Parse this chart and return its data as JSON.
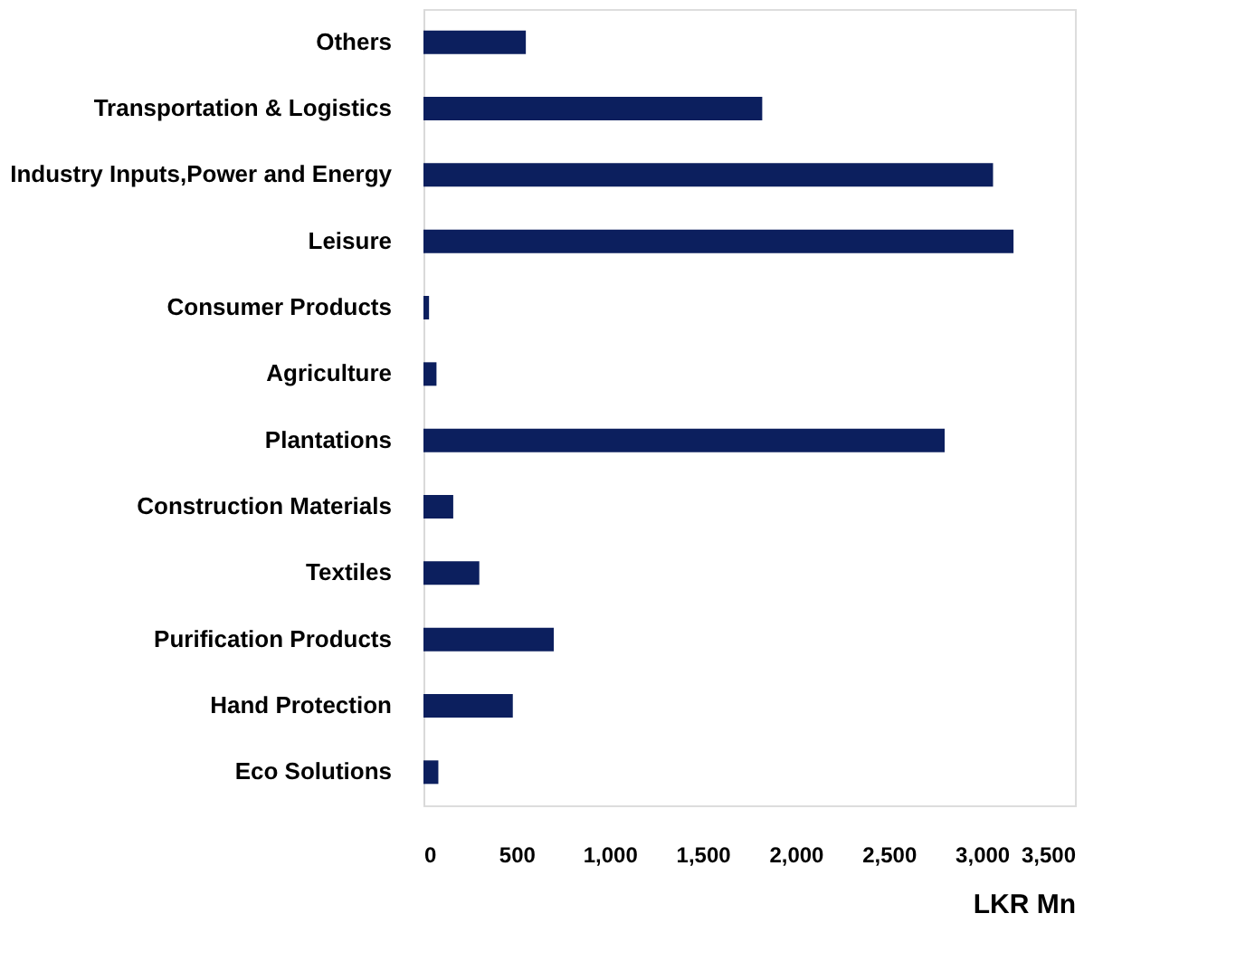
{
  "chart_data": {
    "type": "bar",
    "orientation": "horizontal",
    "xlabel": "LKR Mn",
    "categories": [
      "Others",
      "Transportation & Logistics",
      "Industry Inputs,Power and Energy",
      "Leisure",
      "Consumer Products",
      "Agriculture",
      "Plantations",
      "Construction Materials",
      "Textiles",
      "Purification Products",
      "Hand Protection",
      "Eco Solutions"
    ],
    "values": [
      550,
      1820,
      3060,
      3170,
      30,
      70,
      2800,
      160,
      300,
      700,
      480,
      80
    ],
    "color": "#0c1f5e",
    "xlim": [
      0,
      3500
    ],
    "xticks": [
      0,
      500,
      {
        "value": 1000,
        "label": "1,000"
      },
      {
        "value": 1500,
        "label": "1,500"
      },
      {
        "value": 2000,
        "label": "2,000"
      },
      {
        "value": 2500,
        "label": "2,500"
      },
      {
        "value": 3000,
        "label": "3,000"
      },
      {
        "value": 3500,
        "label": "3,500"
      }
    ],
    "grid": false
  }
}
